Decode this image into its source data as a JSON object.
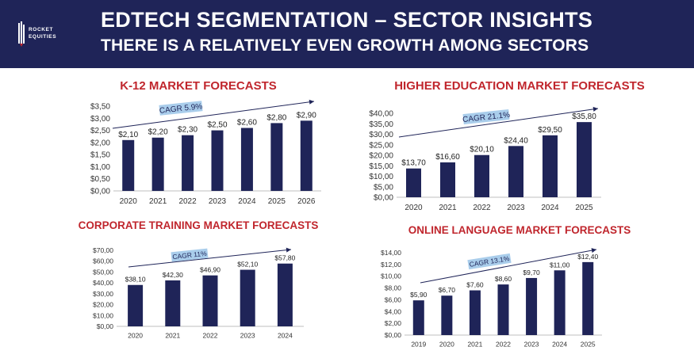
{
  "header": {
    "title": "EDTECH SEGMENTATION – SECTOR INSIGHTS",
    "subtitle": "THERE IS A RELATIVELY EVEN GROWTH AMONG SECTORS",
    "logo_line1": "ROCKET",
    "logo_line2": "EQUITIES",
    "background": "#1f2458"
  },
  "colors": {
    "bar": "#1f2458",
    "title": "#c0262d",
    "cagr_box": "#a9cdeb",
    "arrow": "#1f2458",
    "axis_text": "#333333"
  },
  "chart_data": [
    {
      "id": "k12",
      "type": "bar",
      "title": "K-12 MARKET FORECASTS",
      "categories": [
        "2020",
        "2021",
        "2022",
        "2023",
        "2024",
        "2025",
        "2026"
      ],
      "values": [
        2.1,
        2.2,
        2.3,
        2.5,
        2.6,
        2.8,
        2.9
      ],
      "data_labels": [
        "$2,10",
        "$2,20",
        "$2,30",
        "$2,50",
        "$2,60",
        "$2,80",
        "$2,90"
      ],
      "yticks": [
        "$0,00",
        "$0,50",
        "$1,00",
        "$1,50",
        "$2,00",
        "$2,50",
        "$3,00",
        "$3,50"
      ],
      "ylim": [
        0,
        3.5
      ],
      "annotation": "CAGR 5.9%",
      "grid": false
    },
    {
      "id": "higher",
      "type": "bar",
      "title": "HIGHER EDUCATION MARKET FORECASTS",
      "categories": [
        "2020",
        "2021",
        "2022",
        "2023",
        "2024",
        "2025"
      ],
      "values": [
        13.7,
        16.6,
        20.1,
        24.4,
        29.5,
        35.8
      ],
      "data_labels": [
        "$13,70",
        "$16,60",
        "$20,10",
        "$24,40",
        "$29,50",
        "$35,80"
      ],
      "yticks": [
        "$0,00",
        "$5,00",
        "$10,00",
        "$15,00",
        "$20,00",
        "$25,00",
        "$30,00",
        "$35,00",
        "$40,00"
      ],
      "ylim": [
        0,
        40
      ],
      "annotation": "CAGR 21.1%",
      "grid": false
    },
    {
      "id": "corporate",
      "type": "bar",
      "title": "CORPORATE TRAINING MARKET FORECASTS",
      "categories": [
        "2020",
        "2021",
        "2022",
        "2023",
        "2024"
      ],
      "values": [
        38.1,
        42.3,
        46.9,
        52.1,
        57.8
      ],
      "data_labels": [
        "$38,10",
        "$42,30",
        "$46,90",
        "$52,10",
        "$57,80"
      ],
      "yticks": [
        "$0,00",
        "$10,00",
        "$20,00",
        "$30,00",
        "$40,00",
        "$50,00",
        "$60,00",
        "$70,00"
      ],
      "ylim": [
        0,
        70
      ],
      "annotation": "CAGR 11%",
      "grid": false
    },
    {
      "id": "language",
      "type": "bar",
      "title": "ONLINE LANGUAGE MARKET FORECASTS",
      "categories": [
        "2019",
        "2020",
        "2021",
        "2022",
        "2023",
        "2024",
        "2025"
      ],
      "values": [
        5.9,
        6.7,
        7.6,
        8.6,
        9.7,
        11.0,
        12.4
      ],
      "data_labels": [
        "$5,90",
        "$6,70",
        "$7,60",
        "$8,60",
        "$9,70",
        "$11,00",
        "$12,40"
      ],
      "yticks": [
        "$0,00",
        "$2,00",
        "$4,00",
        "$6,00",
        "$8,00",
        "$10,00",
        "$12,00",
        "$14,00"
      ],
      "ylim": [
        0,
        14
      ],
      "annotation": "CAGR 13.1%",
      "grid": false
    }
  ]
}
